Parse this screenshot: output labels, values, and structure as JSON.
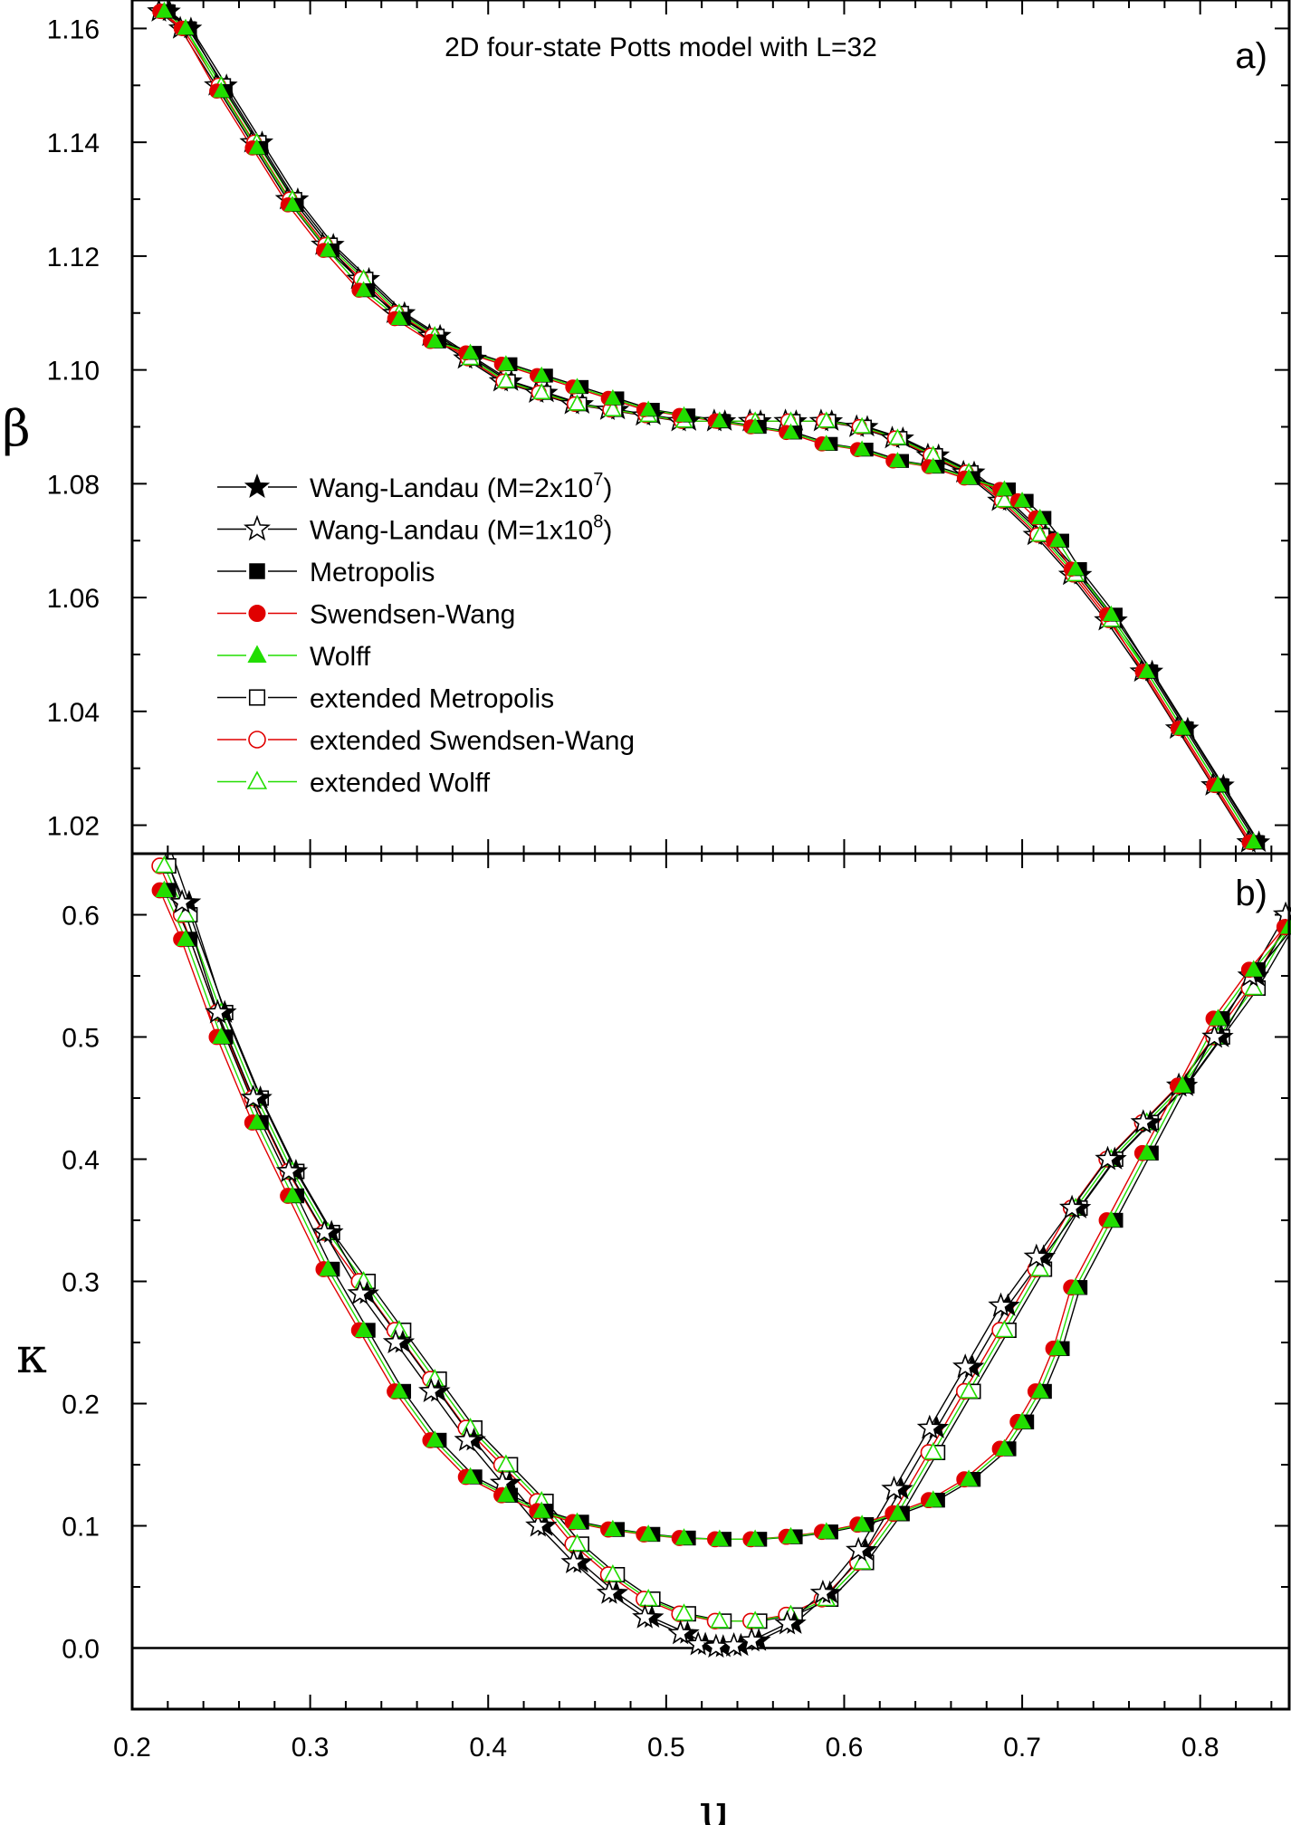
{
  "chart_data": [
    {
      "panel": "a",
      "type": "scatter",
      "title": "2D four-state Potts model with L=32",
      "panel_label": "a)",
      "ylabel": "β",
      "xlabel": "",
      "xlim": [
        0.2,
        0.85
      ],
      "ylim": [
        1.015,
        1.165
      ],
      "yticks": [
        "1.02",
        "1.04",
        "1.06",
        "1.08",
        "1.10",
        "1.12",
        "1.14",
        "1.16"
      ],
      "legend_position": "left",
      "legend": [
        {
          "name": "Wang-Landau (M=2x10",
          "sup": "7",
          "tail": ")",
          "marker": "star",
          "filled": true,
          "color": "#000000",
          "line_color": "#000000"
        },
        {
          "name": "Wang-Landau (M=1x10",
          "sup": "8",
          "tail": ")",
          "marker": "star",
          "filled": false,
          "color": "#000000",
          "line_color": "#000000"
        },
        {
          "name": "Metropolis",
          "marker": "square",
          "filled": true,
          "color": "#000000",
          "line_color": "#000000"
        },
        {
          "name": "Swendsen-Wang",
          "marker": "circle",
          "filled": true,
          "color": "#e00000",
          "line_color": "#e00000"
        },
        {
          "name": "Wolff",
          "marker": "triangle",
          "filled": true,
          "color": "#22dd00",
          "line_color": "#22dd00"
        },
        {
          "name": "extended Metropolis",
          "marker": "square",
          "filled": false,
          "color": "#000000",
          "line_color": "#000000"
        },
        {
          "name": "extended Swendsen-Wang",
          "marker": "circle",
          "filled": false,
          "color": "#e00000",
          "line_color": "#e00000"
        },
        {
          "name": "extended Wolff",
          "marker": "triangle",
          "filled": false,
          "color": "#22dd00",
          "line_color": "#22dd00"
        }
      ],
      "curves": {
        "standard": {
          "x": [
            0.218,
            0.23,
            0.25,
            0.27,
            0.29,
            0.31,
            0.33,
            0.35,
            0.37,
            0.39,
            0.41,
            0.43,
            0.45,
            0.47,
            0.49,
            0.51,
            0.53,
            0.55,
            0.57,
            0.59,
            0.61,
            0.63,
            0.65,
            0.67,
            0.69,
            0.7,
            0.71,
            0.72,
            0.73,
            0.75,
            0.77,
            0.79,
            0.81,
            0.83
          ],
          "y": [
            1.163,
            1.16,
            1.149,
            1.139,
            1.129,
            1.121,
            1.114,
            1.109,
            1.105,
            1.103,
            1.101,
            1.099,
            1.097,
            1.095,
            1.093,
            1.092,
            1.091,
            1.09,
            1.089,
            1.087,
            1.086,
            1.084,
            1.083,
            1.081,
            1.079,
            1.077,
            1.074,
            1.07,
            1.065,
            1.057,
            1.047,
            1.037,
            1.027,
            1.017
          ]
        },
        "wang_landau": {
          "x": [
            0.218,
            0.23,
            0.25,
            0.27,
            0.29,
            0.31,
            0.33,
            0.35,
            0.37,
            0.39,
            0.41,
            0.43,
            0.45,
            0.47,
            0.49,
            0.51,
            0.53,
            0.55,
            0.57,
            0.59,
            0.61,
            0.63,
            0.65,
            0.67,
            0.69,
            0.71,
            0.73,
            0.75,
            0.77,
            0.79,
            0.81,
            0.83
          ],
          "y": [
            1.163,
            1.16,
            1.15,
            1.14,
            1.13,
            1.122,
            1.116,
            1.11,
            1.106,
            1.102,
            1.098,
            1.096,
            1.094,
            1.093,
            1.092,
            1.091,
            1.091,
            1.091,
            1.091,
            1.091,
            1.09,
            1.088,
            1.085,
            1.082,
            1.077,
            1.071,
            1.064,
            1.056,
            1.047,
            1.037,
            1.027,
            1.017
          ]
        }
      }
    },
    {
      "panel": "b",
      "type": "scatter",
      "title": "",
      "panel_label": "b)",
      "ylabel": "κ",
      "xlabel": "u",
      "xlim": [
        0.2,
        0.85
      ],
      "ylim": [
        -0.05,
        0.65
      ],
      "xticks": [
        "0.2",
        "0.3",
        "0.4",
        "0.5",
        "0.6",
        "0.7",
        "0.8"
      ],
      "yticks": [
        "0.0",
        "0.1",
        "0.2",
        "0.3",
        "0.4",
        "0.5",
        "0.6"
      ],
      "reference_line_y": 0.0,
      "curves": {
        "standard": {
          "x": [
            0.218,
            0.23,
            0.25,
            0.27,
            0.29,
            0.31,
            0.33,
            0.35,
            0.37,
            0.39,
            0.41,
            0.43,
            0.45,
            0.47,
            0.49,
            0.51,
            0.53,
            0.55,
            0.57,
            0.59,
            0.61,
            0.63,
            0.65,
            0.67,
            0.69,
            0.7,
            0.71,
            0.72,
            0.73,
            0.75,
            0.77,
            0.79,
            0.81,
            0.83,
            0.85
          ],
          "y": [
            0.62,
            0.58,
            0.5,
            0.43,
            0.37,
            0.31,
            0.26,
            0.21,
            0.17,
            0.14,
            0.125,
            0.112,
            0.103,
            0.097,
            0.093,
            0.09,
            0.089,
            0.089,
            0.091,
            0.095,
            0.101,
            0.11,
            0.121,
            0.138,
            0.163,
            0.185,
            0.21,
            0.245,
            0.295,
            0.35,
            0.405,
            0.46,
            0.515,
            0.555,
            0.59
          ]
        },
        "wang_landau": {
          "x": [
            0.218,
            0.23,
            0.25,
            0.27,
            0.29,
            0.31,
            0.33,
            0.35,
            0.37,
            0.39,
            0.41,
            0.43,
            0.45,
            0.47,
            0.49,
            0.51,
            0.52,
            0.53,
            0.54,
            0.55,
            0.57,
            0.59,
            0.61,
            0.63,
            0.65,
            0.67,
            0.69,
            0.71,
            0.73,
            0.75,
            0.77,
            0.79,
            0.81,
            0.83,
            0.85
          ],
          "y": [
            0.66,
            0.61,
            0.52,
            0.45,
            0.39,
            0.34,
            0.29,
            0.25,
            0.21,
            0.17,
            0.135,
            0.1,
            0.07,
            0.045,
            0.025,
            0.012,
            0.003,
            0.001,
            0.002,
            0.006,
            0.02,
            0.045,
            0.08,
            0.13,
            0.18,
            0.23,
            0.28,
            0.32,
            0.36,
            0.4,
            0.43,
            0.46,
            0.5,
            0.55,
            0.6
          ]
        },
        "extended": {
          "x": [
            0.218,
            0.23,
            0.25,
            0.27,
            0.29,
            0.31,
            0.33,
            0.35,
            0.37,
            0.39,
            0.41,
            0.43,
            0.45,
            0.47,
            0.49,
            0.51,
            0.53,
            0.55,
            0.57,
            0.59,
            0.61,
            0.63,
            0.65,
            0.67,
            0.69,
            0.71,
            0.73,
            0.75,
            0.77,
            0.79,
            0.81,
            0.83,
            0.85
          ],
          "y": [
            0.64,
            0.6,
            0.52,
            0.45,
            0.39,
            0.34,
            0.3,
            0.26,
            0.22,
            0.18,
            0.15,
            0.12,
            0.085,
            0.06,
            0.04,
            0.028,
            0.022,
            0.022,
            0.027,
            0.04,
            0.07,
            0.11,
            0.16,
            0.21,
            0.26,
            0.31,
            0.36,
            0.4,
            0.43,
            0.46,
            0.5,
            0.54,
            0.59
          ]
        }
      }
    }
  ]
}
